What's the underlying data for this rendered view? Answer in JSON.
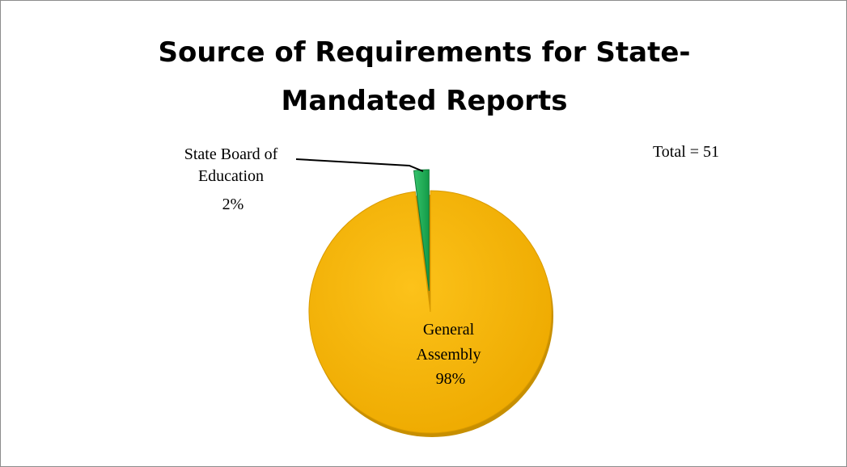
{
  "chart_data": {
    "type": "pie",
    "title_lines": [
      "Source of Requirements for State-",
      "Mandated Reports"
    ],
    "annotation": "Total = 51",
    "slices": [
      {
        "label_lines": [
          "State Board of",
          "Education",
          "2%"
        ],
        "value": 2,
        "color": "#1fb35a"
      },
      {
        "label_lines": [
          "General",
          "Assembly",
          "98%"
        ],
        "value": 98,
        "color": "#f5b400"
      }
    ],
    "legend": "none"
  }
}
